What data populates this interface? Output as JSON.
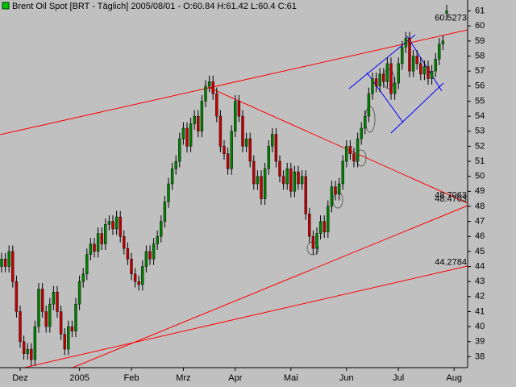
{
  "chart_data": {
    "type": "candlestick",
    "title": "Brent Oil Spot [BRT - Täglich] 2005/08/01 - O:60.84 H:61.42 L:60.4 C:61",
    "categories": [
      null,
      null,
      null,
      null,
      null,
      "Dez",
      null,
      null,
      null,
      null,
      null,
      null,
      null,
      null,
      null,
      null,
      null,
      null,
      null,
      null,
      null,
      "2005",
      null,
      null,
      null,
      null,
      null,
      null,
      null,
      null,
      null,
      null,
      null,
      null,
      null,
      "Feb",
      null,
      null,
      null,
      null,
      null,
      null,
      null,
      null,
      null,
      null,
      null,
      null,
      null,
      "Mrz",
      null,
      null,
      null,
      null,
      null,
      null,
      null,
      null,
      null,
      null,
      null,
      null,
      null,
      "Apr",
      null,
      null,
      null,
      null,
      null,
      null,
      null,
      null,
      null,
      null,
      null,
      null,
      null,
      null,
      "Mai",
      null,
      null,
      null,
      null,
      null,
      null,
      null,
      null,
      null,
      null,
      null,
      null,
      null,
      null,
      "Jun",
      null,
      null,
      null,
      null,
      null,
      null,
      null,
      null,
      null,
      null,
      null,
      null,
      null,
      "Jul",
      null,
      null,
      null,
      null,
      null,
      null,
      null,
      null,
      null,
      null,
      null,
      null,
      null,
      null,
      "Aug"
    ],
    "open": [
      44.0,
      44.5,
      44,
      45,
      43,
      41,
      39,
      38.2,
      38.5,
      37.8,
      40,
      42.5,
      41,
      40,
      41.5,
      42.3,
      41,
      39.5,
      38.5,
      40,
      39.7,
      41.5,
      43,
      43.5,
      44.8,
      45.5,
      45,
      46.2,
      45.5,
      46.8,
      47,
      46.5,
      47.3,
      46,
      45.2,
      44.5,
      43.5,
      43,
      42.8,
      44,
      45,
      44.5,
      45.5,
      46,
      47,
      48.3,
      49.5,
      50.5,
      51,
      52.5,
      53.2,
      52,
      53.5,
      54,
      53,
      55,
      56,
      56.3,
      55.5,
      54,
      52,
      51.5,
      50.5,
      53,
      55,
      54,
      52,
      52.5,
      51,
      49.5,
      50,
      48.5,
      50.5,
      52,
      52.8,
      51,
      50,
      49.5,
      50.5,
      49,
      50.3,
      49.5,
      50,
      47.5,
      46,
      45.2,
      46.2,
      47,
      46.3,
      48,
      49.3,
      48.8,
      49.5,
      51,
      52,
      51.5,
      51,
      52.5,
      53.2,
      54,
      55.5,
      56.5,
      56,
      56.8,
      56.3,
      57.5,
      55.5,
      56.2,
      57.5,
      58.6,
      59.2,
      57,
      58,
      57.5,
      56.8,
      57.3,
      56.5,
      57,
      57.8,
      58.8,
      60.84,
      null,
      null
    ],
    "high": [
      44.9,
      44.9,
      45.4,
      45.4,
      43.4,
      41.4,
      39.4,
      38.9,
      38.9,
      40.4,
      42.9,
      42.9,
      41.4,
      41.9,
      42.7,
      42.7,
      41.4,
      39.9,
      40.4,
      40.4,
      41.9,
      43.4,
      43.9,
      45.2,
      45.9,
      45.9,
      46.6,
      46.6,
      47.2,
      47.4,
      47.4,
      47.7,
      47.7,
      46.4,
      45.6,
      44.9,
      43.9,
      43.4,
      44.4,
      45.4,
      45.4,
      45.9,
      46.4,
      47.4,
      48.7,
      49.9,
      50.9,
      51.4,
      52.9,
      53.6,
      53.6,
      53.9,
      54.4,
      54.4,
      55.4,
      56.4,
      56.7,
      56.7,
      55.9,
      54.4,
      52.4,
      51.9,
      53.4,
      55.4,
      55.4,
      54.4,
      52.9,
      52.9,
      51.4,
      50.4,
      50.4,
      50.9,
      52.4,
      53.2,
      53.2,
      51.4,
      50.4,
      50.9,
      50.9,
      50.7,
      50.7,
      50.4,
      50.4,
      47.9,
      46.4,
      46.6,
      47.4,
      47.4,
      48.4,
      49.7,
      49.7,
      49.9,
      51.4,
      52.4,
      52.4,
      51.9,
      52.9,
      53.6,
      54.4,
      55.9,
      56.9,
      56.9,
      57.2,
      57.2,
      57.9,
      57.9,
      56.6,
      57.9,
      59,
      59.6,
      59.6,
      58.4,
      58.4,
      57.9,
      57.7,
      57.7,
      57.4,
      58.2,
      59.2,
      59.4,
      61.42,
      null,
      null
    ],
    "low": [
      43.6,
      43.6,
      43.6,
      42.6,
      40.6,
      38.6,
      37.8,
      37.8,
      37.4,
      37.4,
      39.6,
      40.6,
      39.6,
      39.6,
      41.1,
      40.6,
      39.1,
      38.1,
      38.1,
      39.3,
      39.3,
      41.1,
      42.6,
      43.1,
      44.4,
      44.6,
      44.6,
      45.1,
      45.1,
      46.4,
      46.1,
      46.1,
      45.6,
      44.8,
      44.1,
      43.1,
      42.6,
      42.4,
      42.4,
      43.6,
      44.1,
      44.1,
      45.1,
      45.6,
      46.6,
      47.9,
      49.1,
      50.1,
      50.6,
      52.1,
      51.6,
      51.6,
      53.1,
      52.6,
      52.6,
      54.6,
      55.6,
      55.1,
      53.6,
      51.6,
      51.1,
      50.1,
      50.1,
      52.6,
      53.6,
      51.6,
      51.6,
      50.6,
      49.1,
      49.1,
      48.1,
      48.1,
      50.1,
      51.6,
      50.6,
      49.6,
      49.1,
      49.1,
      48.6,
      48.6,
      49.1,
      49.1,
      47.1,
      45.6,
      44.8,
      44.8,
      45.8,
      45.9,
      45.9,
      47.6,
      48.4,
      48.4,
      49.1,
      50.6,
      51.1,
      50.6,
      50.6,
      52.1,
      52.8,
      53.6,
      55.1,
      55.6,
      55.6,
      55.9,
      55.9,
      55.1,
      55.1,
      55.8,
      57.1,
      58.2,
      56.6,
      56.6,
      57.1,
      56.4,
      56.4,
      56.1,
      56.1,
      56.6,
      57.4,
      58.4,
      60.4,
      null,
      null
    ],
    "close": [
      44.5,
      44,
      45,
      43,
      41,
      39,
      38.2,
      38.5,
      37.8,
      40,
      42.5,
      41,
      40,
      41.5,
      42.3,
      41,
      39.5,
      38.5,
      40,
      39.7,
      41.5,
      43,
      43.5,
      44.8,
      45.5,
      45,
      46.2,
      45.5,
      46.8,
      47,
      46.5,
      47.3,
      46,
      45.2,
      44.5,
      43.5,
      43,
      42.8,
      44,
      45,
      44.5,
      45.5,
      46,
      47,
      48.3,
      49.5,
      50.5,
      51,
      52.5,
      53.2,
      52,
      53.5,
      54,
      53,
      55,
      56,
      56.3,
      55.5,
      54,
      52,
      51.5,
      50.5,
      53,
      55,
      54,
      52,
      52.5,
      51,
      49.5,
      50,
      48.5,
      50.5,
      52,
      52.8,
      51,
      50,
      49.5,
      50.5,
      49,
      50.3,
      49.5,
      50,
      47.5,
      46,
      45.2,
      46.2,
      47,
      46.3,
      48,
      49.3,
      48.8,
      49.5,
      51,
      52,
      51.5,
      51,
      52.5,
      53.2,
      54,
      55.5,
      56.5,
      56,
      56.8,
      56.3,
      57.5,
      55.5,
      56.2,
      57.5,
      58.6,
      59.2,
      57,
      58,
      57.5,
      56.8,
      57.3,
      56.5,
      57,
      57.8,
      58.8,
      59,
      61,
      null,
      null
    ],
    "up_color": "#008000",
    "down_color": "#c00000",
    "ylim": [
      37.27,
      61.73
    ],
    "yticks": [
      38,
      39,
      40,
      41,
      42,
      43,
      44,
      45,
      46,
      47,
      48,
      49,
      50,
      51,
      52,
      53,
      54,
      55,
      56,
      57,
      58,
      59,
      60,
      61
    ],
    "annotation_color": "#ff0000",
    "annotations": [
      {
        "value": 60.5273,
        "label": "60.5273"
      },
      {
        "value": 48.4703,
        "label": "48.4703"
      },
      {
        "value": 48.7063,
        "label": "48.7063"
      },
      {
        "value": 44.2784,
        "label": "44.2784"
      }
    ]
  }
}
